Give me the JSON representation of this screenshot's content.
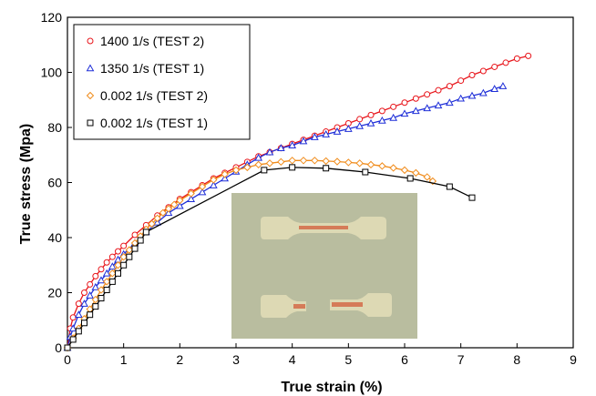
{
  "chart_data": {
    "type": "line",
    "title": "",
    "xlabel": "True strain (%)",
    "ylabel": "True stress (Mpa)",
    "xlim": [
      0,
      9
    ],
    "ylim": [
      0,
      120
    ],
    "xticks": [
      "0",
      "1",
      "2",
      "3",
      "4",
      "5",
      "6",
      "7",
      "8",
      "9"
    ],
    "yticks": [
      "0",
      "20",
      "40",
      "60",
      "80",
      "100",
      "120"
    ],
    "grid": false,
    "legend_position": "top-left",
    "series": [
      {
        "name": "1400 1/s (TEST 2)",
        "color": "#e8141a",
        "marker": "circle",
        "x": [
          0,
          0.05,
          0.1,
          0.2,
          0.3,
          0.4,
          0.5,
          0.6,
          0.7,
          0.8,
          0.9,
          1.0,
          1.2,
          1.4,
          1.6,
          1.8,
          2.0,
          2.2,
          2.4,
          2.6,
          2.8,
          3.0,
          3.2,
          3.4,
          3.6,
          3.8,
          4.0,
          4.2,
          4.4,
          4.6,
          4.8,
          5.0,
          5.2,
          5.4,
          5.6,
          5.8,
          6.0,
          6.2,
          6.4,
          6.6,
          6.8,
          7.0,
          7.2,
          7.4,
          7.6,
          7.8,
          8.0,
          8.2
        ],
        "y": [
          0,
          7,
          11,
          16,
          20,
          23,
          26,
          28.5,
          31,
          33,
          35,
          37,
          41,
          44.5,
          48,
          51,
          54,
          56.5,
          59,
          61.5,
          63.5,
          65.5,
          67.5,
          69.5,
          71,
          72.5,
          74,
          75.5,
          77,
          78.5,
          80,
          81.5,
          83,
          84.5,
          86,
          87.5,
          89,
          90.5,
          92,
          93.5,
          95,
          97,
          99,
          100.5,
          102,
          103.5,
          105,
          106
        ]
      },
      {
        "name": "1350 1/s (TEST 1)",
        "color": "#1f2fd8",
        "marker": "triangle",
        "x": [
          0,
          0.05,
          0.1,
          0.2,
          0.3,
          0.4,
          0.5,
          0.6,
          0.7,
          0.8,
          0.9,
          1.0,
          1.2,
          1.4,
          1.6,
          1.8,
          2.0,
          2.2,
          2.4,
          2.6,
          2.8,
          3.0,
          3.2,
          3.4,
          3.6,
          3.8,
          4.0,
          4.2,
          4.4,
          4.6,
          4.8,
          5.0,
          5.2,
          5.4,
          5.6,
          5.8,
          6.0,
          6.2,
          6.4,
          6.6,
          6.8,
          7.0,
          7.2,
          7.4,
          7.6,
          7.75
        ],
        "y": [
          0,
          4,
          7,
          12,
          16,
          19,
          22,
          24.5,
          27,
          29.5,
          32,
          34,
          38,
          42,
          45.5,
          49,
          51.5,
          54,
          56.5,
          59,
          61.5,
          64,
          66.5,
          69,
          71,
          72.5,
          73.5,
          75,
          76.5,
          77.5,
          78.5,
          79.5,
          80.5,
          81.5,
          82.5,
          83.5,
          85,
          86,
          87,
          88,
          89,
          90.5,
          91.5,
          92.5,
          94,
          95
        ]
      },
      {
        "name": "0.002 1/s (TEST 2)",
        "color": "#f08c1c",
        "marker": "diamond",
        "x": [
          0,
          0.1,
          0.2,
          0.3,
          0.4,
          0.5,
          0.6,
          0.7,
          0.8,
          0.9,
          1.0,
          1.1,
          1.2,
          1.3,
          1.4,
          1.5,
          1.6,
          1.7,
          1.8,
          1.9,
          2.0,
          2.2,
          2.4,
          2.6,
          2.8,
          3.0,
          3.2,
          3.4,
          3.6,
          3.8,
          4.0,
          4.2,
          4.4,
          4.6,
          4.8,
          5.0,
          5.2,
          5.4,
          5.6,
          5.8,
          6.0,
          6.2,
          6.4,
          6.5
        ],
        "y": [
          0,
          3.5,
          7,
          10.5,
          14,
          17.5,
          21,
          24,
          27,
          30,
          33,
          35.5,
          38,
          40.5,
          43,
          45,
          47,
          49,
          50.5,
          52,
          53.5,
          56,
          58.5,
          61,
          63,
          64.5,
          65.5,
          66.5,
          67,
          67.5,
          68,
          68,
          68,
          67.8,
          67.6,
          67.3,
          67,
          66.5,
          66,
          65.3,
          64.5,
          63.5,
          62,
          60.5
        ]
      },
      {
        "name": "0.002 1/s (TEST 1)",
        "color": "#000000",
        "marker": "square",
        "x": [
          0,
          0.1,
          0.2,
          0.3,
          0.4,
          0.5,
          0.6,
          0.7,
          0.8,
          0.9,
          1.0,
          1.1,
          1.2,
          1.3,
          1.4,
          3.5,
          4.0,
          4.6,
          5.3,
          6.1,
          6.8,
          7.2
        ],
        "y": [
          0,
          3,
          6,
          9,
          12,
          15,
          18,
          21,
          24,
          27,
          30,
          33,
          36,
          39,
          42,
          64.5,
          65.5,
          65.2,
          63.8,
          61.5,
          58.5,
          54.5
        ]
      }
    ]
  },
  "inset": {
    "background": "#b9bd9f",
    "specimen_color": "#ddd9b4",
    "stain_color": "#d36a48"
  }
}
